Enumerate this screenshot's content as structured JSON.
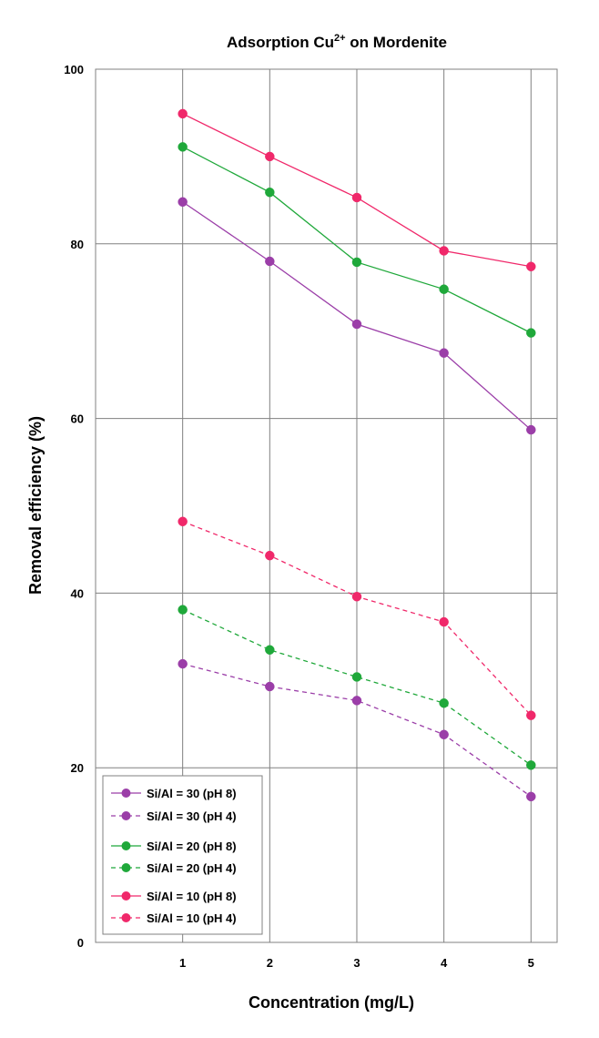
{
  "chart_data": {
    "type": "line",
    "title_main": "Adsorption Cu",
    "title_sup": "2+",
    "title_rest": " on Mordenite",
    "xlabel": "Concentration (mg/L)",
    "ylabel": "Removal efficiency (%)",
    "x": [
      1,
      2,
      3,
      4,
      5
    ],
    "xlim": [
      0,
      5.3
    ],
    "ylim": [
      0,
      100
    ],
    "yticks": [
      0,
      20,
      40,
      60,
      80,
      100
    ],
    "grid": true,
    "legend_position": "bottom-left",
    "series": [
      {
        "name": "Si/Al = 30 (pH 8)",
        "color": "#9b3ea8",
        "dash": "solid",
        "values": [
          84.8,
          78.0,
          70.8,
          67.5,
          58.7
        ]
      },
      {
        "name": "Si/Al = 30 (pH 4)",
        "color": "#9b3ea8",
        "dash": "dashed",
        "values": [
          31.9,
          29.3,
          27.7,
          23.8,
          16.7
        ]
      },
      {
        "name": "Si/Al = 20 (pH 8)",
        "color": "#1fa83a",
        "dash": "solid",
        "values": [
          91.1,
          85.9,
          77.9,
          74.8,
          69.8
        ]
      },
      {
        "name": "Si/Al = 20 (pH 4)",
        "color": "#1fa83a",
        "dash": "dashed",
        "values": [
          38.1,
          33.5,
          30.4,
          27.4,
          20.3
        ]
      },
      {
        "name": "Si/Al = 10 (pH 8)",
        "color": "#f0286a",
        "dash": "solid",
        "values": [
          94.9,
          90.0,
          85.3,
          79.2,
          77.4
        ]
      },
      {
        "name": "Si/Al = 10 (pH 4)",
        "color": "#f0286a",
        "dash": "dashed",
        "values": [
          48.2,
          44.3,
          39.6,
          36.7,
          26.0
        ]
      }
    ]
  }
}
